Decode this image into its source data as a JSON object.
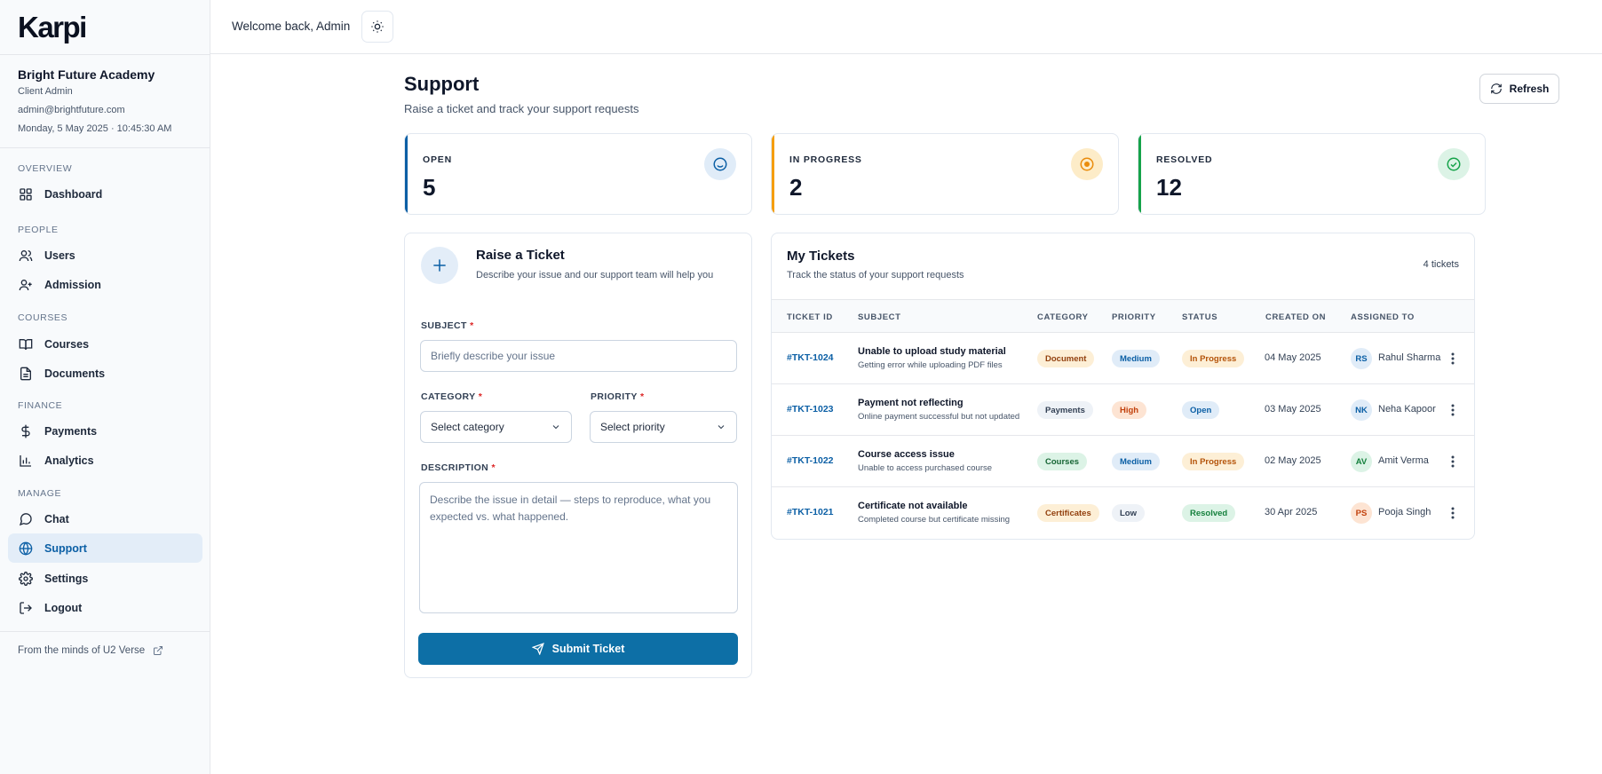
{
  "brand": {
    "logo_text": "Karpi"
  },
  "org": {
    "name": "Bright Future Academy",
    "role": "Client Admin",
    "email": "admin@brightfuture.com",
    "datetime": "Monday, 5 May 2025 · 10:45:30 AM"
  },
  "nav": {
    "overview_label": "OVERVIEW",
    "people_label": "PEOPLE",
    "courses_label": "COURSES",
    "finance_label": "FINANCE",
    "manage_label": "MANAGE",
    "dashboard": "Dashboard",
    "users": "Users",
    "admission": "Admission",
    "courses": "Courses",
    "documents": "Documents",
    "payments": "Payments",
    "analytics": "Analytics",
    "chat": "Chat",
    "support": "Support",
    "settings": "Settings",
    "logout": "Logout"
  },
  "footer": {
    "text": "From the minds of U2 Verse"
  },
  "header": {
    "welcome": "Welcome back, Admin"
  },
  "page": {
    "title": "Support",
    "subtitle": "Raise a ticket and track your support requests",
    "refresh_label": "Refresh"
  },
  "stats": {
    "open": {
      "label": "OPEN",
      "value": "5",
      "color": "#0b5fa5"
    },
    "in_progress": {
      "label": "IN PROGRESS",
      "value": "2",
      "color": "#f59e0b"
    },
    "resolved": {
      "label": "RESOLVED",
      "value": "12",
      "color": "#16a34a"
    }
  },
  "form": {
    "title": "Raise a Ticket",
    "subtitle": "Describe your issue and our support team will help you",
    "subject_label": "SUBJECT",
    "subject_placeholder": "Briefly describe your issue",
    "category_label": "CATEGORY",
    "category_value": "Select category",
    "priority_label": "PRIORITY",
    "priority_value": "Select priority",
    "description_label": "DESCRIPTION",
    "description_placeholder": "Describe the issue in detail — steps to reproduce, what you expected vs. what happened.",
    "required_mark": "*",
    "submit_label": "Submit Ticket"
  },
  "tickets": {
    "title": "My Tickets",
    "subtitle": "Track the status of your support requests",
    "count": "4 tickets",
    "columns": {
      "id": "TICKET ID",
      "subject": "SUBJECT",
      "category": "CATEGORY",
      "priority": "PRIORITY",
      "status": "STATUS",
      "created": "CREATED ON",
      "assigned": "ASSIGNED TO"
    },
    "rows": [
      {
        "id": "#TKT-1024",
        "subject": "Unable to upload study material",
        "detail": "Getting error while uploading PDF files",
        "category": "Document",
        "priority": "Medium",
        "status": "In Progress",
        "created": "04 May 2025",
        "initials": "RS",
        "assignee": "Rahul Sharma"
      },
      {
        "id": "#TKT-1023",
        "subject": "Payment not reflecting",
        "detail": "Online payment successful but not updated",
        "category": "Payments",
        "priority": "High",
        "status": "Open",
        "created": "03 May 2025",
        "initials": "NK",
        "assignee": "Neha Kapoor"
      },
      {
        "id": "#TKT-1022",
        "subject": "Course access issue",
        "detail": "Unable to access purchased course",
        "category": "Courses",
        "priority": "Medium",
        "status": "In Progress",
        "created": "02 May 2025",
        "initials": "AV",
        "assignee": "Amit Verma"
      },
      {
        "id": "#TKT-1021",
        "subject": "Certificate not available",
        "detail": "Completed course but certificate missing",
        "category": "Certificates",
        "priority": "Low",
        "status": "Resolved",
        "created": "30 Apr 2025",
        "initials": "PS",
        "assignee": "Pooja Singh"
      }
    ]
  }
}
